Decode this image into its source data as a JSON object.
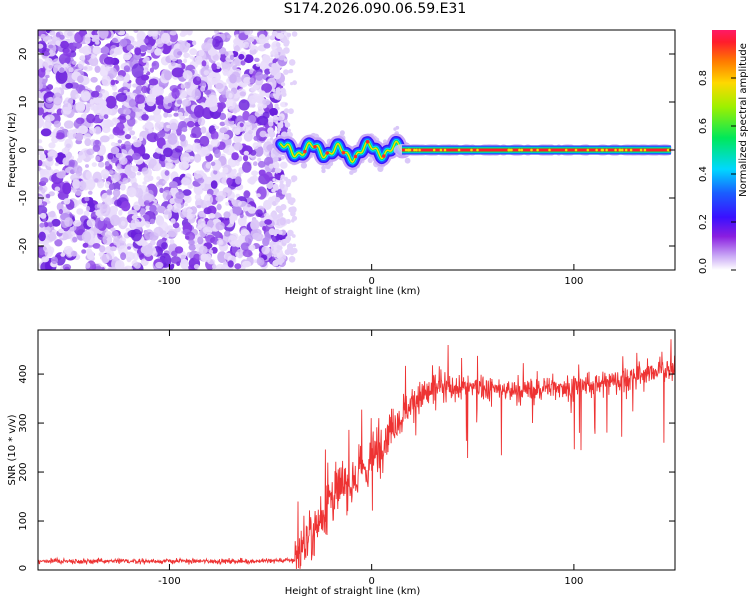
{
  "title": "S174.2026.090.06.59.E31",
  "chart_data": [
    {
      "type": "heatmap",
      "name": "spectrogram",
      "xlabel": "Height of straight line (km)",
      "ylabel": "Frequency (Hz)",
      "xlim": [
        -165,
        150
      ],
      "ylim": [
        -25,
        25
      ],
      "xticks": [
        -100,
        0,
        100
      ],
      "yticks": [
        -20,
        -10,
        0,
        10,
        20
      ],
      "noise_region_x": [
        -165,
        -47
      ],
      "transition_region_x": [
        -47,
        15
      ],
      "signal_line": {
        "x_start": 15,
        "x_end": 148,
        "frequency": 0
      },
      "colorbar": {
        "label": "Normalized spectral amplitude",
        "range": [
          0.0,
          1.0
        ],
        "ticks": [
          0.0,
          0.2,
          0.4,
          0.6,
          0.8
        ],
        "tick_labels": [
          "0.0",
          "0.2",
          "0.4",
          "0.6",
          "0.8"
        ]
      }
    },
    {
      "type": "line",
      "name": "snr",
      "xlabel": "Height of straight line (km)",
      "ylabel": "SNR (10 * v/v)",
      "xlim": [
        -165,
        150
      ],
      "ylim": [
        0,
        490
      ],
      "xticks": [
        -100,
        0,
        100
      ],
      "yticks": [
        0,
        100,
        200,
        300,
        400
      ],
      "color": "#ee3333",
      "trend_x": [
        -165,
        -60,
        -38,
        -35,
        -30,
        -25,
        -20,
        -15,
        -10,
        -5,
        0,
        5,
        10,
        15,
        20,
        25,
        30,
        40,
        50,
        60,
        70,
        80,
        90,
        100,
        110,
        120,
        130,
        140,
        150
      ],
      "trend_y": [
        18,
        18,
        20,
        45,
        75,
        110,
        150,
        165,
        185,
        200,
        220,
        255,
        295,
        320,
        340,
        355,
        365,
        370,
        375,
        370,
        365,
        368,
        375,
        372,
        378,
        388,
        395,
        405,
        412
      ]
    }
  ]
}
